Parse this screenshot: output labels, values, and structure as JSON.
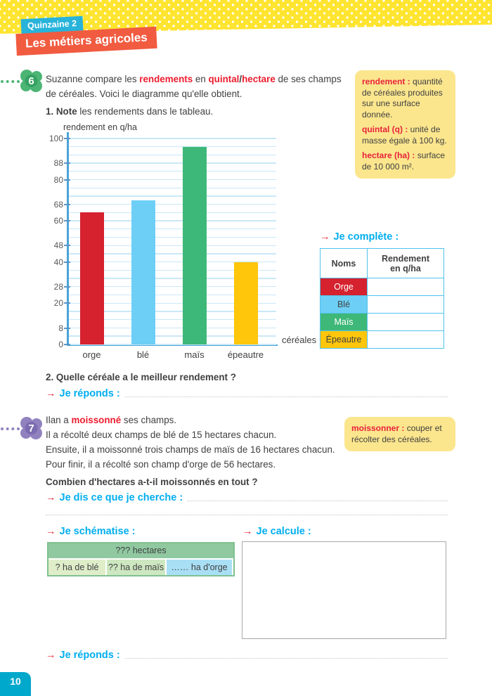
{
  "header": {
    "quinzaine": "Quinzaine 2",
    "title": "Les métiers agricoles"
  },
  "icons": {
    "arrow_right": "→"
  },
  "colors": {
    "banner_yellow": "#ffe430",
    "badge_cyan": "#27b3da",
    "badge_orange": "#f15b40",
    "badge6_green": "#4cb575",
    "badge6_dark": "#35a263",
    "badge7_purple": "#9182bf",
    "badge7_dark": "#7b6bb0",
    "accent_red": "#ed1c2e",
    "heading_cyan": "#00aeef",
    "page_tab_cyan": "#00a8cc"
  },
  "exercise6": {
    "number": "6",
    "intro_pre": "Suzanne compare les ",
    "intro_term1": "rendements",
    "intro_mid": " en ",
    "intro_term2": "quintal",
    "intro_slash": "/",
    "intro_term3": "hectare",
    "intro_post": " de ses champs",
    "intro_line2": "de céréales. Voici le diagramme qu'elle obtient.",
    "q1_bold": "1. Note",
    "q1_rest": " les rendements dans le tableau.",
    "q2": "2. Quelle céréale a le meilleur rendement ?"
  },
  "vocab6": {
    "items": [
      {
        "term": "rendement :",
        "def": "quantité de céréales produites sur une surface donnée."
      },
      {
        "term": "quintal (q) :",
        "def": "unité de masse égale à 100 kg."
      },
      {
        "term": "hectare (ha) :",
        "def": "surface de 10 000 m²."
      }
    ]
  },
  "chart_data": {
    "type": "bar",
    "title": "rendement en q/ha",
    "xlabel": "céréales",
    "ylabel": "rendement en q/ha",
    "categories": [
      "orge",
      "blé",
      "maïs",
      "épeautre"
    ],
    "values": [
      64,
      70,
      96,
      40
    ],
    "colors": [
      "#d6212f",
      "#6dcff6",
      "#3eb878",
      "#ffc60b"
    ],
    "ylim": [
      0,
      100
    ],
    "grid_step": 4,
    "yticks": [
      0,
      8,
      20,
      28,
      40,
      48,
      60,
      68,
      80,
      88,
      100
    ],
    "grid": true,
    "legend": false
  },
  "je_complete": {
    "heading": "Je complète :",
    "columns": [
      "Noms",
      "Rendement en q/ha"
    ],
    "rows": [
      {
        "name": "Orge",
        "value": ""
      },
      {
        "name": "Blé",
        "value": ""
      },
      {
        "name": "Maïs",
        "value": ""
      },
      {
        "name": "Épeautre",
        "value": ""
      }
    ]
  },
  "exercise7": {
    "number": "7",
    "line1_pre": "Ilan a ",
    "line1_term": "moissonné",
    "line1_post": " ses champs.",
    "line2": "Il a récolté deux champs de blé de 15 hectares chacun.",
    "line3": "Ensuite, il a moissonné trois champs de maïs de 16 hectares chacun.",
    "line4": "Pour finir, il a récolté son champ d'orge de 56 hectares.",
    "question": "Combien d'hectares a-t-il moissonnés en tout ?"
  },
  "vocab7": {
    "term": "moissonner :",
    "def": "couper et récolter des céréales."
  },
  "prompts": {
    "je_reponds": "Je réponds :",
    "je_cherche": "Je dis ce que je cherche :",
    "je_schematise": "Je schématise :",
    "je_calcule": "Je calcule :"
  },
  "schema": {
    "total_label": "??? hectares",
    "cells": [
      "? ha de blé",
      "?? ha de maïs",
      "…… ha d'orge"
    ],
    "colors": {
      "total": "#90c9a0",
      "cell1": "#dfeec9",
      "cell2": "#cde7c0",
      "cell3": "#a9dff5"
    }
  },
  "page": {
    "number": "10"
  }
}
